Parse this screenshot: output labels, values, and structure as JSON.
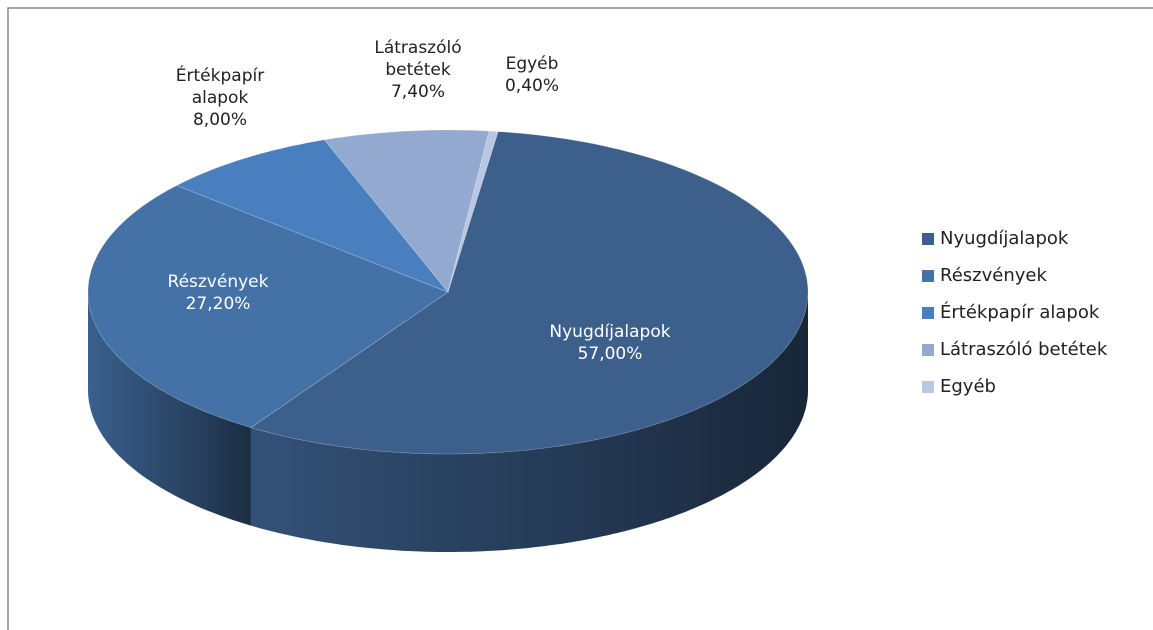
{
  "chart_data": {
    "type": "pie",
    "categories": [
      "Nyugdíjalapok",
      "Részvények",
      "Értékpapír alapok",
      "Látraszóló betétek",
      "Egyéb"
    ],
    "values": [
      57,
      27.2,
      8,
      7.4,
      0.4
    ],
    "value_labels": [
      "57,00%",
      "27,20%",
      "8,00%",
      "7,40%",
      "0,40%"
    ],
    "colors": [
      "#3c5f8c",
      "#4471a6",
      "#4a7fbf",
      "#93a9cf",
      "#b9c7e2"
    ],
    "legend": "right"
  }
}
